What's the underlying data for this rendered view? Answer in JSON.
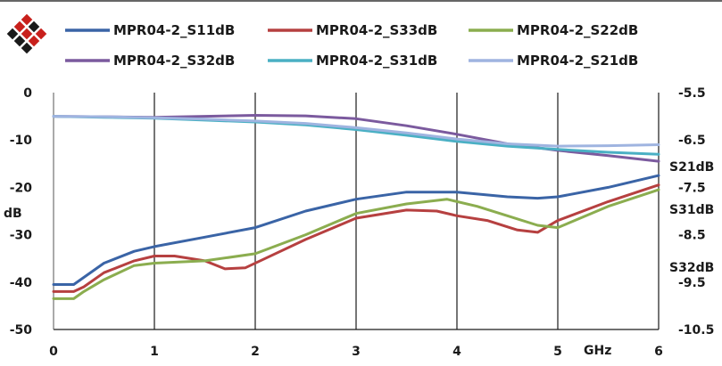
{
  "chart_data": {
    "type": "line",
    "x_label": "GHz",
    "y_label_left": "dB",
    "right_axis_labels": [
      "S21dB",
      "S31dB",
      "S32dB"
    ],
    "x_ticks": [
      "0",
      "1",
      "2",
      "3",
      "4",
      "5",
      "6"
    ],
    "y_left_ticks": [
      "0",
      "-10",
      "-20",
      "-30",
      "-40",
      "-50"
    ],
    "y_right_ticks": [
      "-5.5",
      "-6.5",
      "-7.5",
      "-8.5",
      "-9.5",
      "-10.5"
    ],
    "x_range": [
      0,
      6
    ],
    "y_left_range": [
      -50,
      0
    ],
    "y_right_range": [
      -10.5,
      -5.5
    ],
    "grid": "vertical",
    "legend_position": "top",
    "series": [
      {
        "name": "MPR04-2_S11dB",
        "axis": "left",
        "color": "#3a64a6",
        "x": [
          0,
          0.2,
          0.3,
          0.5,
          0.8,
          1,
          1.5,
          2,
          2.5,
          3,
          3.5,
          4,
          4.5,
          4.8,
          5,
          5.5,
          6
        ],
        "y": [
          -40.5,
          -40.5,
          -39,
          -36,
          -33.5,
          -32.5,
          -30.5,
          -28.5,
          -25,
          -22.5,
          -21,
          -21,
          -22,
          -22.3,
          -22,
          -20,
          -17.5
        ]
      },
      {
        "name": "MPR04-2_S33dB",
        "axis": "left",
        "color": "#b64040",
        "x": [
          0,
          0.2,
          0.3,
          0.5,
          0.8,
          1,
          1.2,
          1.5,
          1.7,
          1.9,
          2.1,
          2.5,
          3,
          3.5,
          3.8,
          4,
          4.3,
          4.6,
          4.8,
          5,
          5.5,
          6
        ],
        "y": [
          -42,
          -42,
          -41,
          -38,
          -35.5,
          -34.5,
          -34.5,
          -35.5,
          -37.2,
          -37,
          -35,
          -31,
          -26.5,
          -24.8,
          -25,
          -26,
          -27,
          -29,
          -29.5,
          -27,
          -23,
          -19.5
        ]
      },
      {
        "name": "MPR04-2_S22dB",
        "axis": "left",
        "color": "#8bad4f",
        "x": [
          0,
          0.2,
          0.3,
          0.5,
          0.8,
          1,
          1.5,
          2,
          2.5,
          3,
          3.5,
          3.9,
          4.2,
          4.5,
          4.8,
          5,
          5.5,
          6
        ],
        "y": [
          -43.5,
          -43.5,
          -42,
          -39.5,
          -36.5,
          -36,
          -35.5,
          -34,
          -30,
          -25.5,
          -23.5,
          -22.5,
          -24,
          -26,
          -28,
          -28.5,
          -24,
          -20.5
        ]
      },
      {
        "name": "MPR04-2_S32dB",
        "axis": "left",
        "color": "#7b5a9e",
        "x": [
          0,
          0.5,
          1,
          1.5,
          2,
          2.5,
          3,
          3.5,
          4,
          4.5,
          5,
          5.5,
          6
        ],
        "y": [
          -5,
          -5.1,
          -5.2,
          -5,
          -4.8,
          -4.9,
          -5.5,
          -7,
          -8.8,
          -10.8,
          -12.2,
          -13.3,
          -14.5
        ]
      },
      {
        "name": "MPR04-2_S31dB",
        "axis": "left",
        "color": "#4ab0c4",
        "x": [
          0,
          0.5,
          1,
          1.5,
          2,
          2.5,
          3,
          3.5,
          4,
          4.5,
          5,
          5.5,
          6
        ],
        "y": [
          -5,
          -5.2,
          -5.4,
          -5.8,
          -6.2,
          -6.8,
          -7.8,
          -9,
          -10.3,
          -11.3,
          -12,
          -12.6,
          -13
        ]
      },
      {
        "name": "MPR04-2_S21dB",
        "axis": "left",
        "color": "#9fb4e0",
        "x": [
          0,
          0.5,
          1,
          1.5,
          2,
          2.5,
          3,
          3.5,
          4,
          4.5,
          5,
          5.5,
          6
        ],
        "y": [
          -5,
          -5.1,
          -5.3,
          -5.6,
          -6,
          -6.5,
          -7.4,
          -8.5,
          -9.8,
          -10.8,
          -11.3,
          -11.2,
          -11
        ]
      }
    ]
  }
}
